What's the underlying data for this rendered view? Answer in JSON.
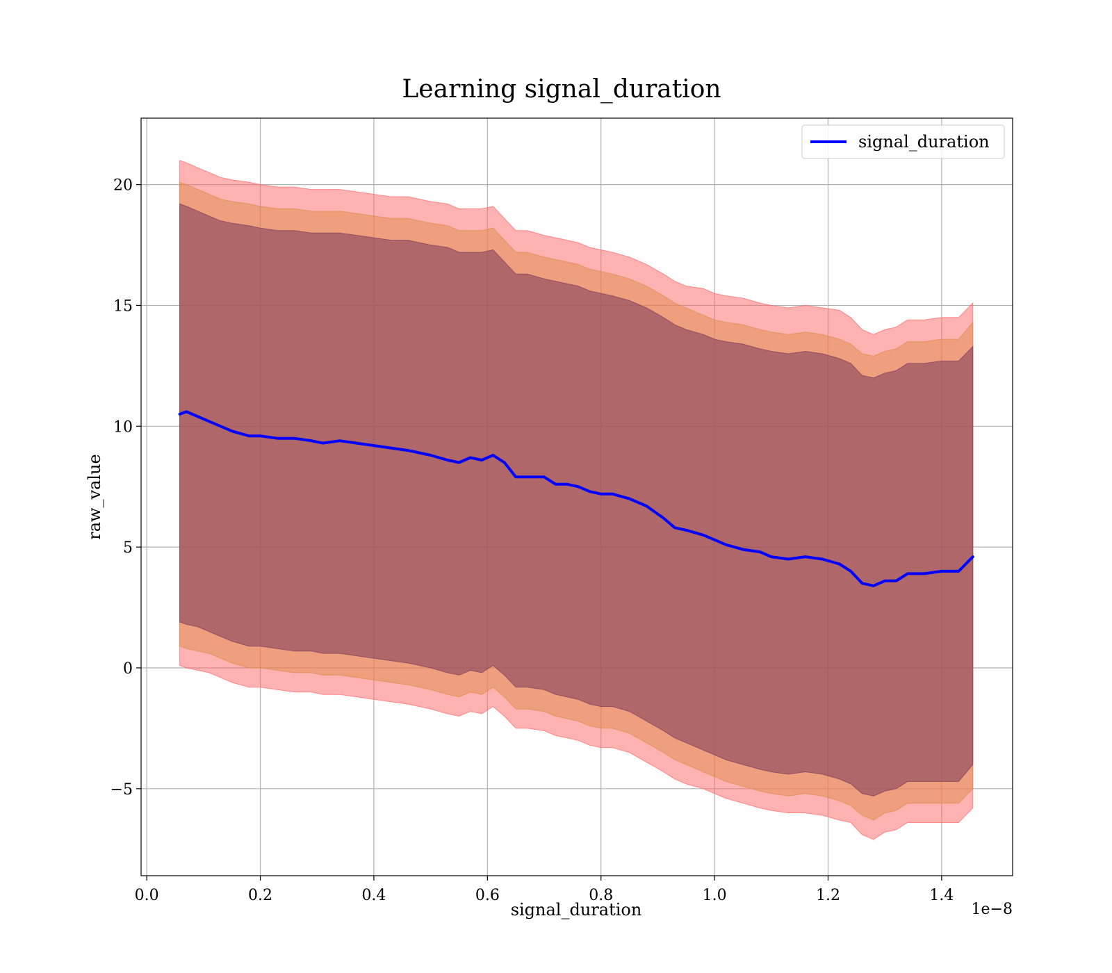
{
  "chart_data": {
    "type": "line",
    "title": "Learning signal_duration",
    "xlabel": "signal_duration",
    "ylabel": "raw_value",
    "x_offset_label": "1e−8",
    "xlim": [
      -0.01,
      1.525
    ],
    "ylim": [
      -8.6,
      22.75
    ],
    "xticks": [
      0.0,
      0.2,
      0.4,
      0.6,
      0.8,
      1.0,
      1.2,
      1.4
    ],
    "xtick_labels": [
      "0.0",
      "0.2",
      "0.4",
      "0.6",
      "0.8",
      "1.0",
      "1.2",
      "1.4"
    ],
    "yticks": [
      -5,
      0,
      5,
      10,
      15,
      20
    ],
    "ytick_labels": [
      "−5",
      "0",
      "5",
      "10",
      "15",
      "20"
    ],
    "grid": true,
    "legend": {
      "position": "top-right",
      "entries": [
        "signal_duration"
      ]
    },
    "series": [
      {
        "name": "signal_duration",
        "color": "#0000ff",
        "x": [
          0.058,
          0.07,
          0.09,
          0.11,
          0.13,
          0.15,
          0.18,
          0.2,
          0.23,
          0.26,
          0.29,
          0.31,
          0.34,
          0.37,
          0.4,
          0.43,
          0.46,
          0.48,
          0.5,
          0.53,
          0.55,
          0.57,
          0.59,
          0.61,
          0.63,
          0.65,
          0.67,
          0.7,
          0.72,
          0.74,
          0.76,
          0.78,
          0.8,
          0.82,
          0.85,
          0.88,
          0.91,
          0.93,
          0.95,
          0.98,
          1.0,
          1.02,
          1.05,
          1.08,
          1.1,
          1.13,
          1.16,
          1.19,
          1.22,
          1.24,
          1.26,
          1.28,
          1.3,
          1.32,
          1.34,
          1.37,
          1.4,
          1.43,
          1.455
        ],
        "y": [
          10.5,
          10.6,
          10.4,
          10.2,
          10.0,
          9.8,
          9.6,
          9.6,
          9.5,
          9.5,
          9.4,
          9.3,
          9.4,
          9.3,
          9.2,
          9.1,
          9.0,
          8.9,
          8.8,
          8.6,
          8.5,
          8.7,
          8.6,
          8.8,
          8.5,
          7.9,
          7.9,
          7.9,
          7.6,
          7.6,
          7.5,
          7.3,
          7.2,
          7.2,
          7.0,
          6.7,
          6.2,
          5.8,
          5.7,
          5.5,
          5.3,
          5.1,
          4.9,
          4.8,
          4.6,
          4.5,
          4.6,
          4.5,
          4.3,
          4.0,
          3.5,
          3.4,
          3.6,
          3.6,
          3.9,
          3.9,
          4.0,
          4.0,
          4.6
        ]
      }
    ],
    "bands": [
      {
        "color": "#ff6666",
        "opacity": 0.5,
        "upper": [
          21.0,
          20.9,
          20.7,
          20.5,
          20.3,
          20.2,
          20.1,
          20.0,
          19.9,
          19.9,
          19.8,
          19.8,
          19.8,
          19.7,
          19.6,
          19.5,
          19.5,
          19.4,
          19.3,
          19.2,
          19.0,
          19.0,
          19.0,
          19.1,
          18.6,
          18.1,
          18.1,
          17.9,
          17.8,
          17.7,
          17.6,
          17.4,
          17.3,
          17.2,
          17.0,
          16.7,
          16.3,
          16.0,
          15.8,
          15.7,
          15.5,
          15.4,
          15.3,
          15.1,
          15.0,
          14.9,
          15.0,
          14.9,
          14.8,
          14.5,
          14.0,
          13.8,
          14.0,
          14.1,
          14.4,
          14.4,
          14.5,
          14.5,
          15.1
        ],
        "lower": [
          0.1,
          0.0,
          -0.1,
          -0.2,
          -0.4,
          -0.6,
          -0.8,
          -0.8,
          -0.9,
          -1.0,
          -1.0,
          -1.1,
          -1.1,
          -1.2,
          -1.3,
          -1.4,
          -1.5,
          -1.6,
          -1.7,
          -1.9,
          -2.0,
          -1.8,
          -1.9,
          -1.6,
          -2.0,
          -2.5,
          -2.5,
          -2.6,
          -2.8,
          -2.9,
          -3.0,
          -3.2,
          -3.3,
          -3.3,
          -3.5,
          -3.9,
          -4.3,
          -4.6,
          -4.8,
          -5.0,
          -5.2,
          -5.4,
          -5.6,
          -5.8,
          -5.9,
          -6.0,
          -6.0,
          -6.1,
          -6.3,
          -6.4,
          -6.9,
          -7.1,
          -6.8,
          -6.7,
          -6.4,
          -6.4,
          -6.4,
          -6.4,
          -5.8
        ]
      },
      {
        "color": "#e08a4a",
        "opacity": 0.5,
        "upper": [
          20.1,
          20.0,
          19.8,
          19.6,
          19.4,
          19.3,
          19.2,
          19.1,
          19.0,
          19.0,
          18.9,
          18.9,
          18.9,
          18.8,
          18.7,
          18.6,
          18.6,
          18.5,
          18.4,
          18.3,
          18.1,
          18.1,
          18.1,
          18.2,
          17.7,
          17.2,
          17.2,
          17.0,
          16.9,
          16.8,
          16.7,
          16.5,
          16.4,
          16.3,
          16.1,
          15.8,
          15.4,
          15.1,
          14.9,
          14.6,
          14.4,
          14.3,
          14.2,
          14.0,
          13.9,
          13.8,
          13.9,
          13.8,
          13.6,
          13.4,
          13.0,
          12.9,
          13.1,
          13.2,
          13.5,
          13.5,
          13.6,
          13.6,
          14.3
        ],
        "lower": [
          0.9,
          0.8,
          0.7,
          0.6,
          0.4,
          0.2,
          0.0,
          0.0,
          -0.1,
          -0.2,
          -0.2,
          -0.3,
          -0.3,
          -0.4,
          -0.5,
          -0.6,
          -0.7,
          -0.8,
          -0.9,
          -1.1,
          -1.2,
          -1.0,
          -1.1,
          -0.8,
          -1.2,
          -1.7,
          -1.7,
          -1.8,
          -2.0,
          -2.1,
          -2.2,
          -2.4,
          -2.5,
          -2.5,
          -2.7,
          -3.1,
          -3.5,
          -3.8,
          -4.0,
          -4.3,
          -4.5,
          -4.7,
          -4.9,
          -5.1,
          -5.2,
          -5.3,
          -5.2,
          -5.3,
          -5.5,
          -5.7,
          -6.1,
          -6.3,
          -6.0,
          -5.9,
          -5.6,
          -5.6,
          -5.6,
          -5.6,
          -5.0
        ]
      },
      {
        "color": "#7b3a5a",
        "opacity": 0.55,
        "upper": [
          19.2,
          19.1,
          18.9,
          18.7,
          18.5,
          18.4,
          18.3,
          18.2,
          18.1,
          18.1,
          18.0,
          18.0,
          18.0,
          17.9,
          17.8,
          17.7,
          17.7,
          17.6,
          17.5,
          17.4,
          17.2,
          17.2,
          17.2,
          17.3,
          16.8,
          16.3,
          16.3,
          16.1,
          16.0,
          15.9,
          15.8,
          15.6,
          15.5,
          15.4,
          15.2,
          14.9,
          14.5,
          14.2,
          14.0,
          13.8,
          13.6,
          13.5,
          13.4,
          13.2,
          13.1,
          13.0,
          13.1,
          13.0,
          12.8,
          12.6,
          12.1,
          12.0,
          12.2,
          12.3,
          12.6,
          12.6,
          12.7,
          12.7,
          13.3
        ],
        "lower": [
          1.9,
          1.8,
          1.7,
          1.5,
          1.3,
          1.1,
          0.9,
          0.9,
          0.8,
          0.7,
          0.7,
          0.6,
          0.6,
          0.5,
          0.4,
          0.3,
          0.2,
          0.1,
          0.0,
          -0.2,
          -0.3,
          -0.1,
          -0.2,
          0.1,
          -0.3,
          -0.8,
          -0.8,
          -0.9,
          -1.1,
          -1.2,
          -1.3,
          -1.5,
          -1.6,
          -1.6,
          -1.8,
          -2.2,
          -2.6,
          -2.9,
          -3.1,
          -3.4,
          -3.6,
          -3.8,
          -4.0,
          -4.2,
          -4.3,
          -4.4,
          -4.3,
          -4.4,
          -4.6,
          -4.8,
          -5.2,
          -5.3,
          -5.1,
          -5.0,
          -4.7,
          -4.7,
          -4.7,
          -4.7,
          -4.0
        ]
      }
    ]
  }
}
